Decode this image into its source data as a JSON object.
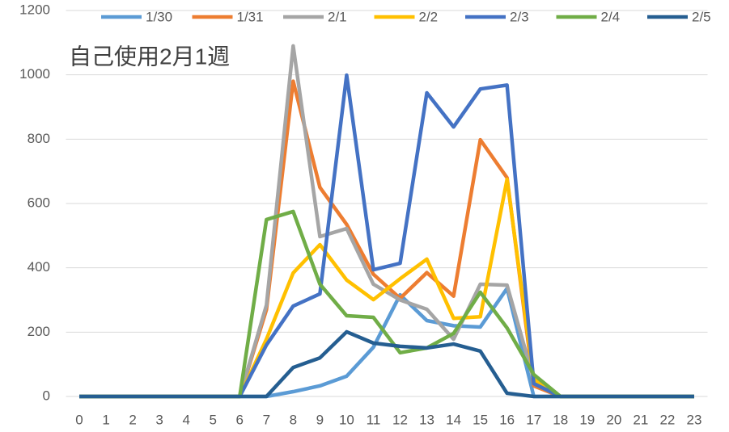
{
  "chart_data": {
    "type": "line",
    "title": "自己使用2月1週",
    "x": [
      0,
      1,
      2,
      3,
      4,
      5,
      6,
      7,
      8,
      9,
      10,
      11,
      12,
      13,
      14,
      15,
      16,
      17,
      18,
      19,
      20,
      21,
      22,
      23
    ],
    "xlim": [
      -0.5,
      23.5
    ],
    "xticks": [
      0,
      1,
      2,
      3,
      4,
      5,
      6,
      7,
      8,
      9,
      10,
      11,
      12,
      13,
      14,
      15,
      16,
      17,
      18,
      19,
      20,
      21,
      22,
      23
    ],
    "ylim": [
      0,
      1200
    ],
    "yticks": [
      0,
      200,
      400,
      600,
      800,
      1000,
      1200
    ],
    "grid": true,
    "legend": "top",
    "series": [
      {
        "name": "1/30",
        "color": "#5b9bd5",
        "values": [
          0,
          0,
          0,
          0,
          0,
          0,
          0,
          0,
          15,
          33,
          63,
          153,
          316,
          236,
          220,
          216,
          336,
          0,
          0,
          0,
          0,
          0,
          0,
          0
        ]
      },
      {
        "name": "1/31",
        "color": "#ed7d31",
        "values": [
          0,
          0,
          0,
          0,
          0,
          0,
          0,
          270,
          980,
          650,
          535,
          380,
          305,
          385,
          312,
          798,
          680,
          33,
          0,
          0,
          0,
          0,
          0,
          0
        ]
      },
      {
        "name": "2/1",
        "color": "#a5a5a5",
        "values": [
          0,
          0,
          0,
          0,
          0,
          0,
          0,
          284,
          1090,
          497,
          522,
          349,
          300,
          271,
          178,
          349,
          346,
          52,
          0,
          0,
          0,
          0,
          0,
          0
        ]
      },
      {
        "name": "2/2",
        "color": "#ffc000",
        "values": [
          0,
          0,
          0,
          0,
          0,
          0,
          0,
          178,
          384,
          472,
          362,
          301,
          366,
          427,
          243,
          248,
          675,
          53,
          0,
          0,
          0,
          0,
          0,
          0
        ]
      },
      {
        "name": "2/3",
        "color": "#4472c4",
        "values": [
          0,
          0,
          0,
          0,
          0,
          0,
          0,
          160,
          281,
          319,
          999,
          394,
          414,
          944,
          838,
          956,
          968,
          40,
          0,
          0,
          0,
          0,
          0,
          0
        ]
      },
      {
        "name": "2/4",
        "color": "#70ad47",
        "values": [
          0,
          0,
          0,
          0,
          0,
          0,
          0,
          550,
          575,
          349,
          251,
          246,
          136,
          151,
          196,
          324,
          213,
          68,
          0,
          0,
          0,
          0,
          0,
          0
        ]
      },
      {
        "name": "2/5",
        "color": "#255e91",
        "values": [
          0,
          0,
          0,
          0,
          0,
          0,
          0,
          0,
          90,
          120,
          201,
          166,
          156,
          151,
          163,
          141,
          10,
          0,
          0,
          0,
          0,
          0,
          0,
          0
        ]
      }
    ]
  }
}
